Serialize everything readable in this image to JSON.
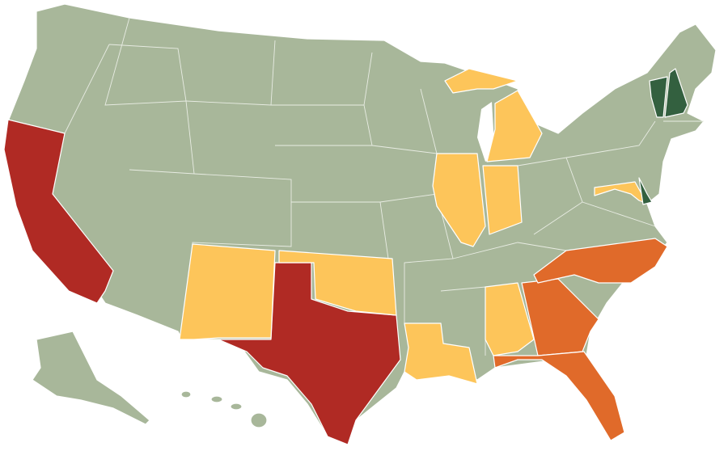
{
  "map": {
    "palette": {
      "base": "#a8b79a",
      "red": "#b02a24",
      "orange": "#e06a2a",
      "yellow": "#fdc55a",
      "dark_green": "#33603f",
      "water": "#ffffff"
    },
    "fills": {
      "base_us": "base",
      "alaska": "base",
      "hawaii": "base",
      "california": "red",
      "texas": "red",
      "new_mexico": "yellow",
      "oklahoma": "yellow",
      "louisiana": "yellow",
      "alabama": "yellow",
      "illinois": "yellow",
      "indiana": "yellow",
      "michigan": "yellow",
      "maryland": "yellow",
      "georgia": "orange",
      "florida": "orange",
      "north_carolina": "orange",
      "vermont": "dark_green",
      "new_hampshire": "dark_green",
      "delaware": "dark_green"
    }
  }
}
